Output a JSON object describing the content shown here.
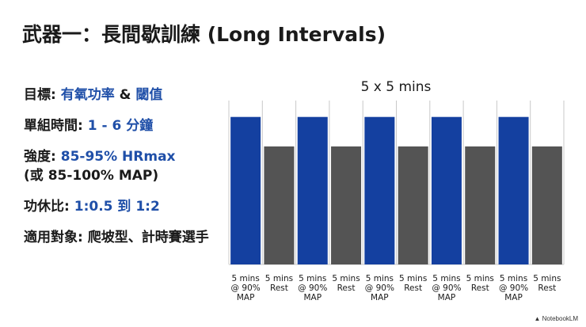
{
  "title": "武器一：長間歇訓練 (Long Intervals)",
  "stats": [
    {
      "key": "目標:",
      "parts": [
        {
          "text": "有氧功率",
          "style": "v"
        },
        {
          "text": " & ",
          "style": "sep"
        },
        {
          "text": "閾值",
          "style": "v"
        }
      ]
    },
    {
      "key": "單組時間:",
      "parts": [
        {
          "text": "1 - 6 分鐘",
          "style": "v"
        }
      ]
    },
    {
      "key": "強度:",
      "parts": [
        {
          "text": "85-95% HRmax",
          "style": "v"
        },
        {
          "text": "(或 85-100% MAP)",
          "style": "k",
          "newline": true
        }
      ]
    },
    {
      "key": "功休比:",
      "parts": [
        {
          "text": "1:0.5 到 1:2",
          "style": "v"
        }
      ]
    },
    {
      "key": "適用對象:",
      "parts": [
        {
          "text": "爬坡型、計時賽選手",
          "style": "k"
        }
      ]
    }
  ],
  "chart_data": {
    "type": "bar",
    "title": "5 x 5 mins",
    "categories": [
      "5 mins @ 90% MAP",
      "5 mins Rest",
      "5 mins @ 90% MAP",
      "5 mins Rest",
      "5 mins @ 90% MAP",
      "5 mins Rest",
      "5 mins @ 90% MAP",
      "5 mins Rest",
      "5 mins @ 90% MAP",
      "5 mins Rest"
    ],
    "category_lines": [
      [
        "5 mins",
        "@ 90%",
        "MAP"
      ],
      [
        "5 mins",
        "Rest"
      ],
      [
        "5 mins",
        "@ 90%",
        "MAP"
      ],
      [
        "5 mins",
        "Rest"
      ],
      [
        "5 mins",
        "@ 90%",
        "MAP"
      ],
      [
        "5 mins",
        "Rest"
      ],
      [
        "5 mins",
        "@ 90%",
        "MAP"
      ],
      [
        "5 mins",
        "Rest"
      ],
      [
        "5 mins",
        "@ 90%",
        "MAP"
      ],
      [
        "5 mins",
        "Rest"
      ]
    ],
    "values": [
      90,
      72,
      90,
      72,
      90,
      72,
      90,
      72,
      90,
      72
    ],
    "ylim": [
      0,
      100
    ],
    "bar_kinds": [
      "work",
      "rest",
      "work",
      "rest",
      "work",
      "rest",
      "work",
      "rest",
      "work",
      "rest"
    ],
    "grid": true,
    "colors": {
      "work": "#1440a0",
      "rest": "#545454",
      "grid": "#c8c8c8"
    }
  },
  "watermark": "NotebookLM",
  "watermark_icon": "notebooklm-logo-icon"
}
